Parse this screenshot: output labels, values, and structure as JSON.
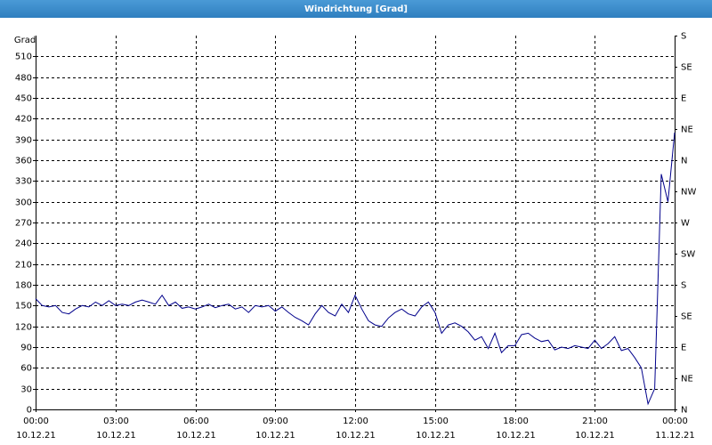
{
  "chart_data": {
    "type": "line",
    "title": "Windrichtung [Grad]",
    "y_label": "Grad",
    "x": [
      0,
      0.25,
      0.5,
      0.75,
      1,
      1.25,
      1.5,
      1.75,
      2,
      2.25,
      2.5,
      2.75,
      3,
      3.25,
      3.5,
      3.75,
      4,
      4.25,
      4.5,
      4.75,
      5,
      5.25,
      5.5,
      5.75,
      6,
      6.25,
      6.5,
      6.75,
      7,
      7.25,
      7.5,
      7.75,
      8,
      8.25,
      8.5,
      8.75,
      9,
      9.25,
      9.5,
      9.75,
      10,
      10.25,
      10.5,
      10.75,
      11,
      11.25,
      11.5,
      11.75,
      12,
      12.25,
      12.5,
      12.75,
      13,
      13.25,
      13.5,
      13.75,
      14,
      14.25,
      14.5,
      14.75,
      15,
      15.25,
      15.5,
      15.75,
      16,
      16.25,
      16.5,
      16.75,
      17,
      17.25,
      17.5,
      17.75,
      18,
      18.25,
      18.5,
      18.75,
      19,
      19.25,
      19.5,
      19.75,
      20,
      20.25,
      20.5,
      20.75,
      21,
      21.25,
      21.5,
      21.75,
      22,
      22.25,
      22.5,
      22.75,
      23,
      23.25,
      23.5,
      23.75,
      24
    ],
    "series": [
      {
        "name": "Windrichtung",
        "color": "#00008b",
        "values": [
          160,
          150,
          148,
          150,
          140,
          138,
          145,
          150,
          148,
          155,
          150,
          157,
          150,
          152,
          150,
          155,
          158,
          155,
          152,
          165,
          150,
          155,
          146,
          148,
          145,
          148,
          152,
          147,
          150,
          152,
          145,
          148,
          140,
          150,
          148,
          150,
          142,
          148,
          140,
          133,
          128,
          122,
          138,
          150,
          140,
          135,
          152,
          140,
          165,
          145,
          128,
          122,
          120,
          132,
          140,
          145,
          138,
          135,
          148,
          155,
          140,
          110,
          122,
          125,
          120,
          112,
          100,
          105,
          88,
          110,
          82,
          92,
          92,
          108,
          110,
          103,
          98,
          100,
          86,
          90,
          88,
          92,
          90,
          88,
          100,
          88,
          95,
          105,
          85,
          88,
          75,
          60,
          8,
          30,
          340,
          300,
          400
        ]
      }
    ],
    "xlim": [
      0,
      24
    ],
    "xticks": [
      {
        "value": 0,
        "label": "00:00"
      },
      {
        "value": 3,
        "label": "03:00"
      },
      {
        "value": 6,
        "label": "06:00"
      },
      {
        "value": 9,
        "label": "09:00"
      },
      {
        "value": 12,
        "label": "12:00"
      },
      {
        "value": 15,
        "label": "15:00"
      },
      {
        "value": 18,
        "label": "18:00"
      },
      {
        "value": 21,
        "label": "21:00"
      },
      {
        "value": 24,
        "label": "00:00"
      }
    ],
    "xtick_dates": [
      "10.12.21",
      "10.12.21",
      "10.12.21",
      "10.12.21",
      "10.12.21",
      "10.12.21",
      "10.12.21",
      "10.12.21",
      "11.12.21"
    ],
    "ylim": [
      0,
      540
    ],
    "yticks": [
      0,
      30,
      60,
      90,
      120,
      150,
      180,
      210,
      240,
      270,
      300,
      330,
      360,
      390,
      420,
      450,
      480,
      510
    ],
    "y2lim": [
      0,
      540
    ],
    "y2ticks": [
      {
        "value": 0,
        "label": "N"
      },
      {
        "value": 45,
        "label": "NE"
      },
      {
        "value": 90,
        "label": "E"
      },
      {
        "value": 135,
        "label": "SE"
      },
      {
        "value": 180,
        "label": "S"
      },
      {
        "value": 225,
        "label": "SW"
      },
      {
        "value": 270,
        "label": "W"
      },
      {
        "value": 315,
        "label": "NW"
      },
      {
        "value": 360,
        "label": "N"
      },
      {
        "value": 405,
        "label": "NE"
      },
      {
        "value": 450,
        "label": "E"
      },
      {
        "value": 495,
        "label": "SE"
      },
      {
        "value": 540,
        "label": "S"
      }
    ],
    "grid": true
  }
}
